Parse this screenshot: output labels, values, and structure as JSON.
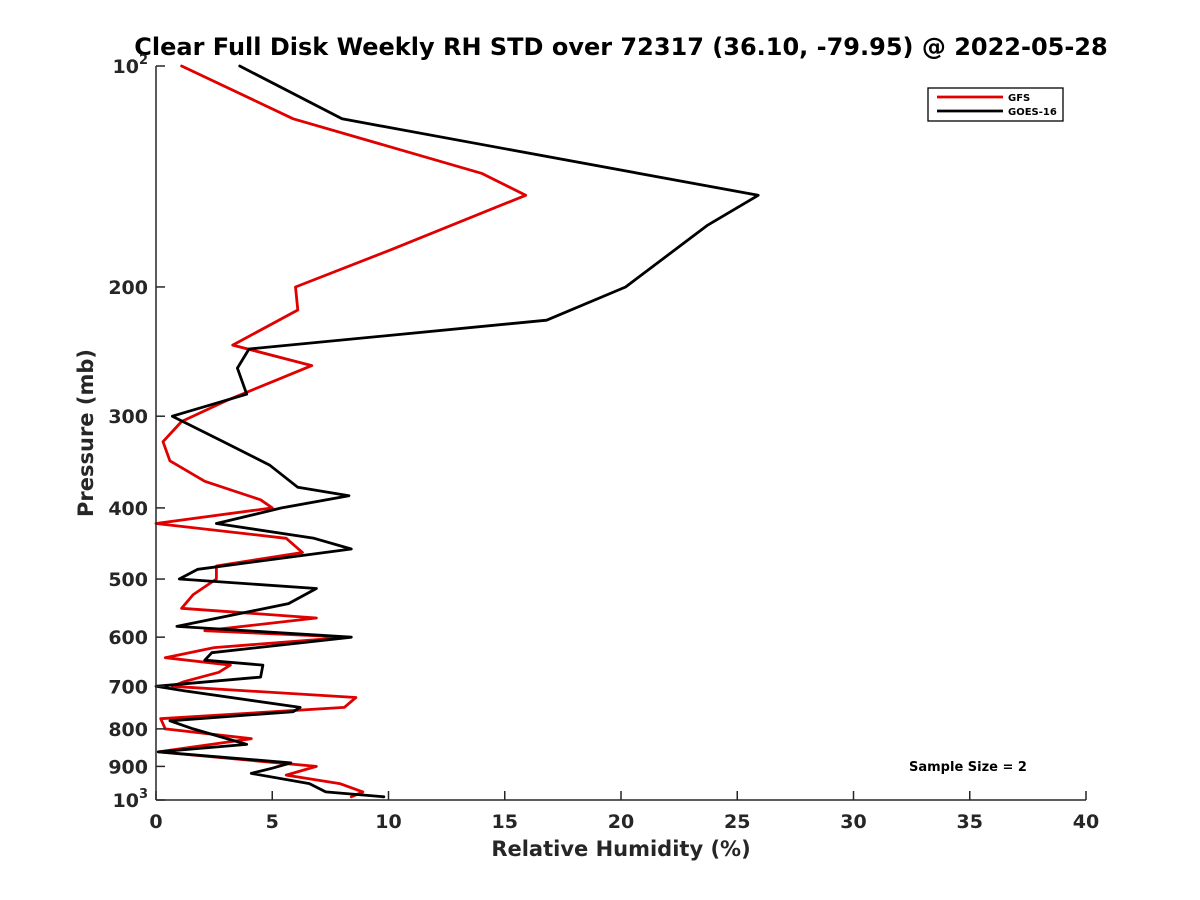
{
  "chart_data": {
    "type": "line",
    "title": "Clear Full Disk Weekly RH STD over 72317 (36.10, -79.95) @ 2022-05-28",
    "xlabel": "Relative Humidity (%)",
    "ylabel": "Pressure (mb)",
    "xlim": [
      0,
      40
    ],
    "ylim": [
      100,
      1000
    ],
    "y_scale": "log",
    "y_reversed": true,
    "x_ticks": [
      0,
      5,
      10,
      15,
      20,
      25,
      30,
      35,
      40
    ],
    "y_ticks": [
      {
        "value": 100,
        "base": "10",
        "exp": "2"
      },
      {
        "value": 200,
        "label": "200"
      },
      {
        "value": 300,
        "label": "300"
      },
      {
        "value": 400,
        "label": "400"
      },
      {
        "value": 500,
        "label": "500"
      },
      {
        "value": 600,
        "label": "600"
      },
      {
        "value": 700,
        "label": "700"
      },
      {
        "value": 800,
        "label": "800"
      },
      {
        "value": 900,
        "label": "900"
      },
      {
        "value": 1000,
        "base": "10",
        "exp": "3"
      }
    ],
    "grid": false,
    "legend_position": "top-right",
    "annotation": "Sample Size = 2",
    "series": [
      {
        "name": "GFS",
        "color": "#e00000",
        "points": [
          {
            "rh": 1.1,
            "p": 100
          },
          {
            "rh": 5.9,
            "p": 118
          },
          {
            "rh": 14.0,
            "p": 140
          },
          {
            "rh": 15.9,
            "p": 150
          },
          {
            "rh": 10.1,
            "p": 178
          },
          {
            "rh": 6.0,
            "p": 200
          },
          {
            "rh": 6.1,
            "p": 215
          },
          {
            "rh": 3.3,
            "p": 240
          },
          {
            "rh": 6.7,
            "p": 256
          },
          {
            "rh": 3.1,
            "p": 285
          },
          {
            "rh": 1.1,
            "p": 305
          },
          {
            "rh": 0.3,
            "p": 325
          },
          {
            "rh": 0.6,
            "p": 345
          },
          {
            "rh": 2.1,
            "p": 368
          },
          {
            "rh": 4.5,
            "p": 390
          },
          {
            "rh": 5.0,
            "p": 400
          },
          {
            "rh": 0.0,
            "p": 420
          },
          {
            "rh": 5.6,
            "p": 440
          },
          {
            "rh": 6.3,
            "p": 460
          },
          {
            "rh": 2.6,
            "p": 480
          },
          {
            "rh": 2.6,
            "p": 500
          },
          {
            "rh": 1.6,
            "p": 525
          },
          {
            "rh": 1.1,
            "p": 548
          },
          {
            "rh": 6.9,
            "p": 565
          },
          {
            "rh": 2.1,
            "p": 588
          },
          {
            "rh": 8.3,
            "p": 600
          },
          {
            "rh": 2.5,
            "p": 620
          },
          {
            "rh": 0.4,
            "p": 640
          },
          {
            "rh": 3.2,
            "p": 655
          },
          {
            "rh": 2.7,
            "p": 670
          },
          {
            "rh": 1.2,
            "p": 690
          },
          {
            "rh": 0.7,
            "p": 700
          },
          {
            "rh": 8.6,
            "p": 725
          },
          {
            "rh": 8.1,
            "p": 748
          },
          {
            "rh": 0.2,
            "p": 775
          },
          {
            "rh": 0.4,
            "p": 800
          },
          {
            "rh": 4.1,
            "p": 825
          },
          {
            "rh": 0.1,
            "p": 860
          },
          {
            "rh": 6.9,
            "p": 900
          },
          {
            "rh": 5.6,
            "p": 925
          },
          {
            "rh": 7.9,
            "p": 950
          },
          {
            "rh": 8.9,
            "p": 975
          },
          {
            "rh": 8.4,
            "p": 990
          }
        ]
      },
      {
        "name": "GOES-16",
        "color": "#000000",
        "points": [
          {
            "rh": 3.6,
            "p": 100
          },
          {
            "rh": 8.0,
            "p": 118
          },
          {
            "rh": 25.9,
            "p": 150
          },
          {
            "rh": 23.7,
            "p": 165
          },
          {
            "rh": 20.2,
            "p": 200
          },
          {
            "rh": 16.8,
            "p": 222
          },
          {
            "rh": 4.0,
            "p": 243
          },
          {
            "rh": 3.5,
            "p": 258
          },
          {
            "rh": 3.9,
            "p": 280
          },
          {
            "rh": 0.7,
            "p": 300
          },
          {
            "rh": 2.9,
            "p": 325
          },
          {
            "rh": 4.9,
            "p": 350
          },
          {
            "rh": 6.1,
            "p": 375
          },
          {
            "rh": 8.3,
            "p": 385
          },
          {
            "rh": 5.4,
            "p": 400
          },
          {
            "rh": 2.6,
            "p": 420
          },
          {
            "rh": 6.8,
            "p": 440
          },
          {
            "rh": 8.4,
            "p": 455
          },
          {
            "rh": 1.8,
            "p": 485
          },
          {
            "rh": 1.0,
            "p": 500
          },
          {
            "rh": 6.9,
            "p": 515
          },
          {
            "rh": 5.7,
            "p": 540
          },
          {
            "rh": 0.9,
            "p": 580
          },
          {
            "rh": 8.4,
            "p": 600
          },
          {
            "rh": 2.4,
            "p": 630
          },
          {
            "rh": 2.1,
            "p": 645
          },
          {
            "rh": 4.6,
            "p": 655
          },
          {
            "rh": 4.5,
            "p": 680
          },
          {
            "rh": 0.0,
            "p": 700
          },
          {
            "rh": 1.2,
            "p": 710
          },
          {
            "rh": 6.2,
            "p": 748
          },
          {
            "rh": 5.9,
            "p": 758
          },
          {
            "rh": 0.6,
            "p": 780
          },
          {
            "rh": 1.6,
            "p": 800
          },
          {
            "rh": 3.9,
            "p": 840
          },
          {
            "rh": 0.1,
            "p": 860
          },
          {
            "rh": 5.8,
            "p": 890
          },
          {
            "rh": 5.0,
            "p": 905
          },
          {
            "rh": 4.1,
            "p": 920
          },
          {
            "rh": 6.6,
            "p": 950
          },
          {
            "rh": 7.3,
            "p": 975
          },
          {
            "rh": 9.8,
            "p": 990
          }
        ]
      }
    ]
  }
}
